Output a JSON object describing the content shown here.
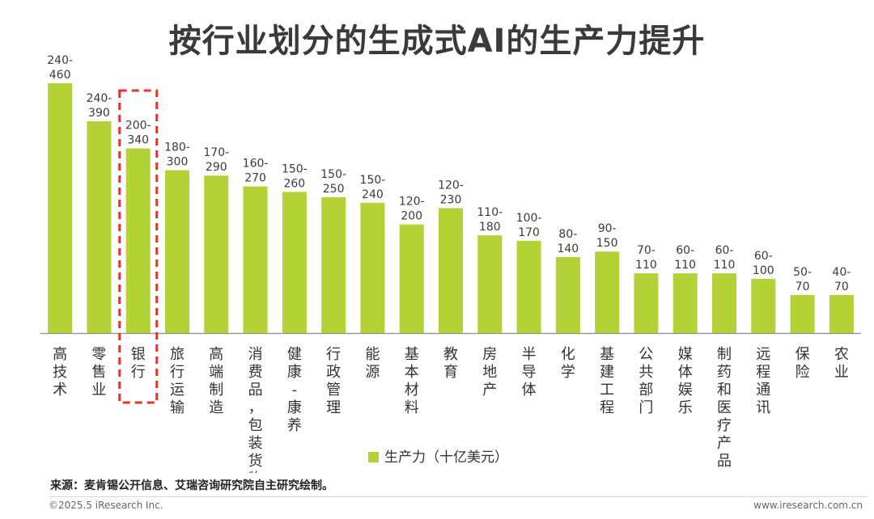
{
  "chart_data": {
    "type": "bar",
    "title": "按行业划分的生成式AI的生产力提升",
    "categories": [
      "高技术",
      "零售业",
      "银行",
      "旅行运输",
      "高端制造",
      "消费品，包装货物",
      "健康-康养",
      "行政管理",
      "能源",
      "基本材料",
      "教育",
      "房地产",
      "半导体",
      "化学",
      "基建工程",
      "公共部门",
      "媒体娱乐",
      "制药和医疗产品",
      "远程通讯",
      "保险",
      "农业"
    ],
    "value_labels": [
      "240-\n460",
      "240-\n390",
      "200-\n340",
      "180-\n300",
      "170-\n290",
      "160-\n270",
      "150-\n260",
      "150-\n250",
      "150-\n240",
      "120-\n200",
      "120-\n230",
      "110-\n180",
      "100-\n170",
      "80-\n140",
      "90-\n150",
      "70-\n110",
      "60-\n110",
      "60-\n110",
      "60-\n100",
      "50-\n70",
      "40-\n70"
    ],
    "series": [
      {
        "name": "生产力（十亿美元）",
        "color": "#b2d235",
        "ranges": [
          [
            240,
            460
          ],
          [
            240,
            390
          ],
          [
            200,
            340
          ],
          [
            180,
            300
          ],
          [
            170,
            290
          ],
          [
            160,
            270
          ],
          [
            150,
            260
          ],
          [
            150,
            250
          ],
          [
            150,
            240
          ],
          [
            120,
            200
          ],
          [
            120,
            230
          ],
          [
            110,
            180
          ],
          [
            100,
            170
          ],
          [
            80,
            140
          ],
          [
            90,
            150
          ],
          [
            70,
            110
          ],
          [
            60,
            110
          ],
          [
            60,
            110
          ],
          [
            60,
            100
          ],
          [
            50,
            70
          ],
          [
            40,
            70
          ]
        ],
        "values": [
          460,
          390,
          340,
          300,
          290,
          270,
          260,
          250,
          240,
          200,
          230,
          180,
          170,
          140,
          150,
          110,
          110,
          110,
          100,
          70,
          70
        ]
      }
    ],
    "ylim": [
      0,
      460
    ],
    "grid": false,
    "legend_position": "bottom-center",
    "highlight_category": "银行",
    "highlight_style": "red dashed box"
  },
  "source_text": "来源：麦肯锡公开信息、艾瑞咨询研究院自主研究绘制。",
  "copyright": "©2025.5 iResearch Inc.",
  "website": "www.iresearch.com.cn",
  "colors": {
    "bar": "#b2d235",
    "highlight": "#e8322d",
    "axis": "#8c8c8c",
    "title": "#3a3a3a"
  }
}
